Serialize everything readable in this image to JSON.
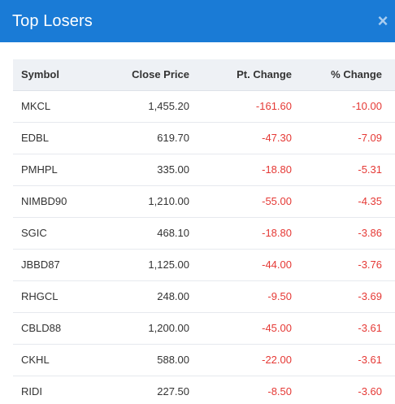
{
  "modal": {
    "title": "Top Losers",
    "close_icon": "×"
  },
  "table": {
    "columns": [
      "Symbol",
      "Close Price",
      "Pt. Change",
      "% Change"
    ],
    "rows": [
      {
        "symbol": "MKCL",
        "close": "1,455.20",
        "pt": "-161.60",
        "pct": "-10.00"
      },
      {
        "symbol": "EDBL",
        "close": "619.70",
        "pt": "-47.30",
        "pct": "-7.09"
      },
      {
        "symbol": "PMHPL",
        "close": "335.00",
        "pt": "-18.80",
        "pct": "-5.31"
      },
      {
        "symbol": "NIMBD90",
        "close": "1,210.00",
        "pt": "-55.00",
        "pct": "-4.35"
      },
      {
        "symbol": "SGIC",
        "close": "468.10",
        "pt": "-18.80",
        "pct": "-3.86"
      },
      {
        "symbol": "JBBD87",
        "close": "1,125.00",
        "pt": "-44.00",
        "pct": "-3.76"
      },
      {
        "symbol": "RHGCL",
        "close": "248.00",
        "pt": "-9.50",
        "pct": "-3.69"
      },
      {
        "symbol": "CBLD88",
        "close": "1,200.00",
        "pt": "-45.00",
        "pct": "-3.61"
      },
      {
        "symbol": "CKHL",
        "close": "588.00",
        "pt": "-22.00",
        "pct": "-3.61"
      },
      {
        "symbol": "RIDI",
        "close": "227.50",
        "pt": "-8.50",
        "pct": "-3.60"
      }
    ]
  },
  "colors": {
    "header_bg": "#1a7bd6",
    "negative": "#e53935"
  }
}
